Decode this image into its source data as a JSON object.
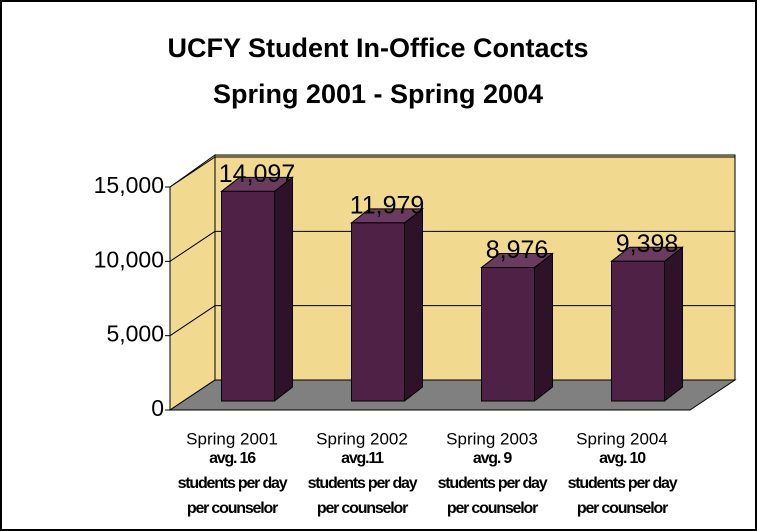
{
  "chart_data": {
    "type": "bar3d",
    "title": [
      "UCFY Student In-Office Contacts",
      "Spring 2001 - Spring 2004"
    ],
    "categories": [
      "Spring 2001",
      "Spring 2002",
      "Spring 2003",
      "Spring 2004"
    ],
    "annotations": [
      [
        "avg. 16",
        "students per day",
        "per counselor"
      ],
      [
        "avg.11",
        "students per day",
        "per counselor"
      ],
      [
        "avg. 9",
        "students per day",
        "per counselor"
      ],
      [
        "avg. 10",
        "students per day",
        "per counselor"
      ]
    ],
    "values": [
      14097,
      11979,
      8976,
      9398
    ],
    "value_labels": [
      "14,097",
      "11,979",
      "8,976",
      "9,398"
    ],
    "color": "#4f2146",
    "ylim": [
      0,
      15000
    ],
    "yticks": [
      0,
      {
        "value": 5000,
        "label": "5,000"
      },
      {
        "value": 10000,
        "label": "10,000"
      },
      {
        "value": 15000,
        "label": "15,000"
      }
    ],
    "grid": true
  }
}
